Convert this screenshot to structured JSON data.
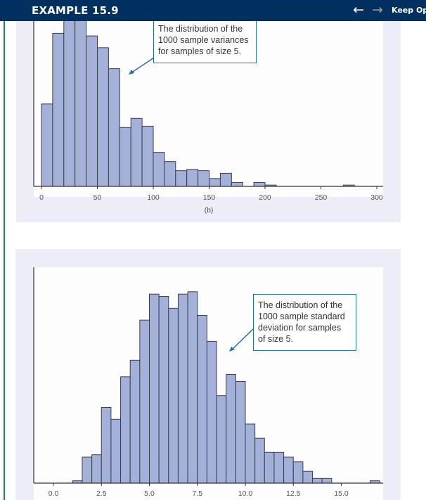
{
  "header": {
    "title": "EXAMPLE 15.9",
    "back_icon": "arrow-left-icon",
    "forward_icon": "arrow-right-icon",
    "keep_open_label": "Keep Ope"
  },
  "colors": {
    "header_bg": "#00305f",
    "bar_fill": "#a3b1d9",
    "bar_stroke": "#3a3f4f",
    "panel_bg": "#ecedf6",
    "annotation_border": "#2a6bb5"
  },
  "chart_data": [
    {
      "type": "bar",
      "subtype": "histogram",
      "caption": "(b)",
      "bin_width": 10,
      "bin_starts": [
        0,
        10,
        20,
        30,
        40,
        50,
        60,
        70,
        80,
        90,
        100,
        110,
        120,
        130,
        140,
        150,
        160,
        170,
        180,
        190,
        200,
        210,
        220,
        230,
        240,
        250,
        260,
        270
      ],
      "values": [
        63,
        117,
        131,
        129,
        115,
        106,
        90,
        45,
        52,
        46,
        26,
        19,
        12,
        13,
        12,
        6,
        10,
        3,
        0,
        3,
        1,
        0,
        0,
        0,
        0,
        0,
        0,
        1
      ],
      "xticks": [
        "0",
        "50",
        "100",
        "150",
        "200",
        "250",
        "300"
      ],
      "xtick_values": [
        0,
        50,
        100,
        150,
        200,
        250,
        300
      ],
      "xlim": [
        -4,
        305
      ],
      "annotation": [
        "The distribution of the",
        "1000 sample variances",
        "for samples of size 5."
      ]
    },
    {
      "type": "bar",
      "subtype": "histogram",
      "bin_width": 0.5,
      "bin_starts": [
        1.0,
        1.5,
        2.0,
        2.5,
        3.0,
        3.5,
        4.0,
        4.5,
        5.0,
        5.5,
        6.0,
        6.5,
        7.0,
        7.5,
        8.0,
        8.5,
        9.0,
        9.5,
        10.0,
        10.5,
        11.0,
        11.5,
        12.0,
        12.5,
        13.0,
        13.5,
        14.0,
        14.5,
        15.0,
        15.5,
        16.0,
        16.5
      ],
      "values": [
        1,
        11,
        12,
        32,
        27,
        45,
        52,
        69,
        80,
        79,
        74,
        80,
        81,
        71,
        60,
        37,
        46,
        43,
        25,
        19,
        13,
        13,
        11,
        9,
        5,
        2,
        2,
        0,
        0,
        0,
        0,
        1
      ],
      "xticks": [
        "0.0",
        "2.5",
        "5.0",
        "7.5",
        "10.0",
        "12.5",
        "15.0"
      ],
      "xtick_values": [
        0,
        2.5,
        5,
        7.5,
        10,
        12.5,
        15
      ],
      "xlim": [
        -1,
        17.2
      ],
      "annotation": [
        "The distribution of the",
        "1000 sample standard",
        "deviation for samples",
        "of size 5."
      ]
    }
  ]
}
